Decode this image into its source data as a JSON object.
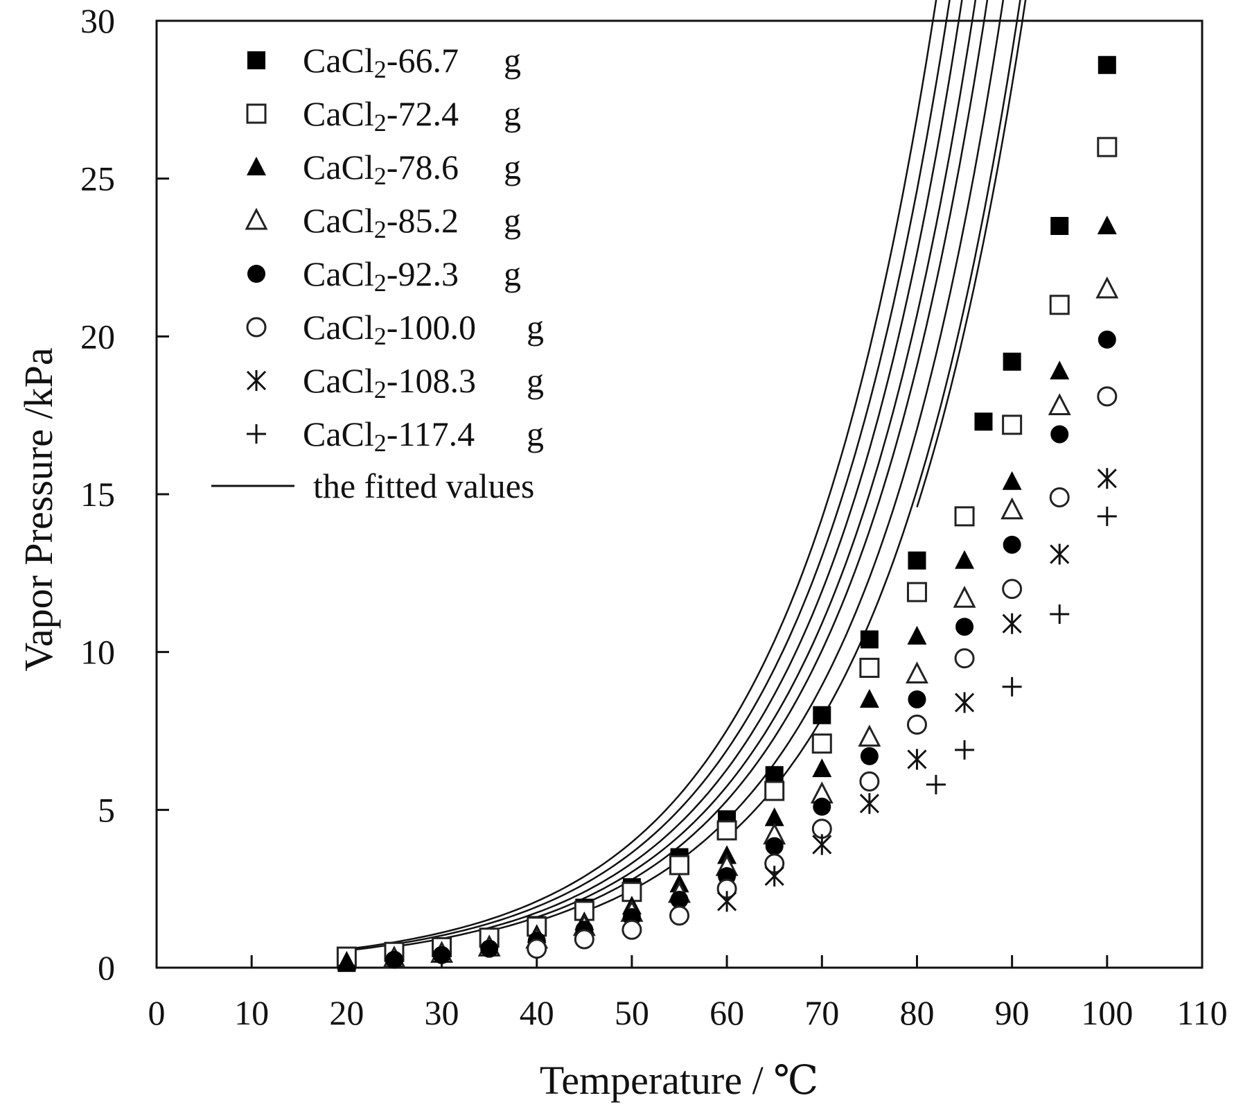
{
  "chart_data": {
    "type": "scatter",
    "title": "",
    "xlabel": "Temperature / ℃",
    "ylabel": "Vapor Pressure /kPa",
    "xlim": [
      0,
      110
    ],
    "ylim": [
      0,
      30
    ],
    "xticks": [
      "0",
      "10",
      "20",
      "30",
      "40",
      "50",
      "60",
      "70",
      "80",
      "90",
      "100",
      "110"
    ],
    "yticks": [
      "0",
      "5",
      "10",
      "15",
      "20",
      "25",
      "30"
    ],
    "legend_position": "top-left",
    "fit_legend_label": "the fitted values",
    "series": [
      {
        "name": "CaCl2-66.7",
        "unit": "g",
        "marker": "square-filled",
        "x": [
          20,
          25,
          30,
          35,
          40,
          45,
          50,
          55,
          60,
          65,
          70,
          75,
          80,
          87,
          90,
          95,
          100
        ],
        "y": [
          0.15,
          0.35,
          0.65,
          0.95,
          1.35,
          1.9,
          2.55,
          3.5,
          4.7,
          6.1,
          8.0,
          10.4,
          12.9,
          17.3,
          19.2,
          23.5,
          28.6
        ],
        "fit_x": [
          20,
          100
        ],
        "fit_a": 0.1637,
        "fit_b": 0.0638
      },
      {
        "name": "CaCl2-72.4",
        "unit": "g",
        "marker": "square-open",
        "x": [
          20,
          25,
          30,
          35,
          40,
          45,
          50,
          55,
          60,
          65,
          70,
          75,
          80,
          85,
          90,
          95,
          100
        ],
        "y": [
          0.35,
          0.5,
          0.65,
          0.95,
          1.3,
          1.8,
          2.4,
          3.25,
          4.35,
          5.6,
          7.1,
          9.5,
          11.9,
          14.3,
          17.2,
          21.0,
          26.0
        ],
        "fit_x": [
          20,
          100
        ],
        "fit_a": 0.1508,
        "fit_b": 0.0637
      },
      {
        "name": "CaCl2-78.6",
        "unit": "g",
        "marker": "triangle-filled",
        "x": [
          20,
          25,
          30,
          35,
          40,
          45,
          50,
          55,
          60,
          65,
          70,
          75,
          80,
          85,
          90,
          95,
          100
        ],
        "y": [
          0.2,
          0.35,
          0.5,
          0.7,
          1.05,
          1.45,
          1.95,
          2.65,
          3.55,
          4.75,
          6.3,
          8.5,
          10.5,
          12.9,
          15.4,
          18.9,
          23.5
        ],
        "fit_x": [
          25,
          100
        ],
        "fit_a": 0.1342,
        "fit_b": 0.0641
      },
      {
        "name": "CaCl2-85.2",
        "unit": "g",
        "marker": "triangle-open",
        "x": [
          25,
          30,
          35,
          40,
          45,
          50,
          55,
          60,
          65,
          70,
          75,
          80,
          85,
          90,
          95,
          100
        ],
        "y": [
          0.3,
          0.45,
          0.65,
          0.9,
          1.3,
          1.75,
          2.35,
          3.2,
          4.2,
          5.5,
          7.3,
          9.3,
          11.7,
          14.5,
          17.8,
          21.5
        ],
        "fit_x": [
          35,
          100
        ],
        "fit_a": 0.1236,
        "fit_b": 0.064
      },
      {
        "name": "CaCl2-92.3",
        "unit": "g",
        "marker": "circle-filled",
        "x": [
          25,
          30,
          35,
          40,
          45,
          50,
          55,
          60,
          65,
          70,
          75,
          80,
          85,
          90,
          95,
          100
        ],
        "y": [
          0.25,
          0.4,
          0.6,
          0.85,
          1.2,
          1.6,
          2.15,
          2.9,
          3.85,
          5.1,
          6.7,
          8.5,
          10.8,
          13.4,
          16.9,
          19.9
        ],
        "fit_x": [
          40,
          100
        ],
        "fit_a": 0.1131,
        "fit_b": 0.0641
      },
      {
        "name": "CaCl2-100.0",
        "unit": "g",
        "marker": "circle-open",
        "x": [
          40,
          45,
          50,
          55,
          60,
          65,
          70,
          75,
          80,
          85,
          90,
          95,
          100
        ],
        "y": [
          0.6,
          0.9,
          1.2,
          1.65,
          2.5,
          3.3,
          4.4,
          5.9,
          7.7,
          9.8,
          12.0,
          14.9,
          18.1
        ],
        "fit_x": [
          45,
          100
        ],
        "fit_a": 0.0972,
        "fit_b": 0.0646
      },
      {
        "name": "CaCl2-108.3",
        "unit": "g",
        "marker": "asterisk",
        "x": [
          60,
          65,
          70,
          75,
          80,
          85,
          90,
          95,
          100
        ],
        "y": [
          2.1,
          2.9,
          3.9,
          5.2,
          6.6,
          8.4,
          10.9,
          13.1,
          15.5
        ],
        "fit_x": [
          60,
          100
        ],
        "fit_a": 0.0835,
        "fit_b": 0.065
      },
      {
        "name": "CaCl2-117.4",
        "unit": "g",
        "marker": "plus",
        "x": [
          82,
          85,
          90,
          95,
          100
        ],
        "y": [
          5.8,
          6.9,
          8.9,
          11.2,
          14.3
        ],
        "fit_x": [
          80,
          100
        ],
        "fit_a": 0.0805,
        "fit_b": 0.065
      }
    ]
  }
}
